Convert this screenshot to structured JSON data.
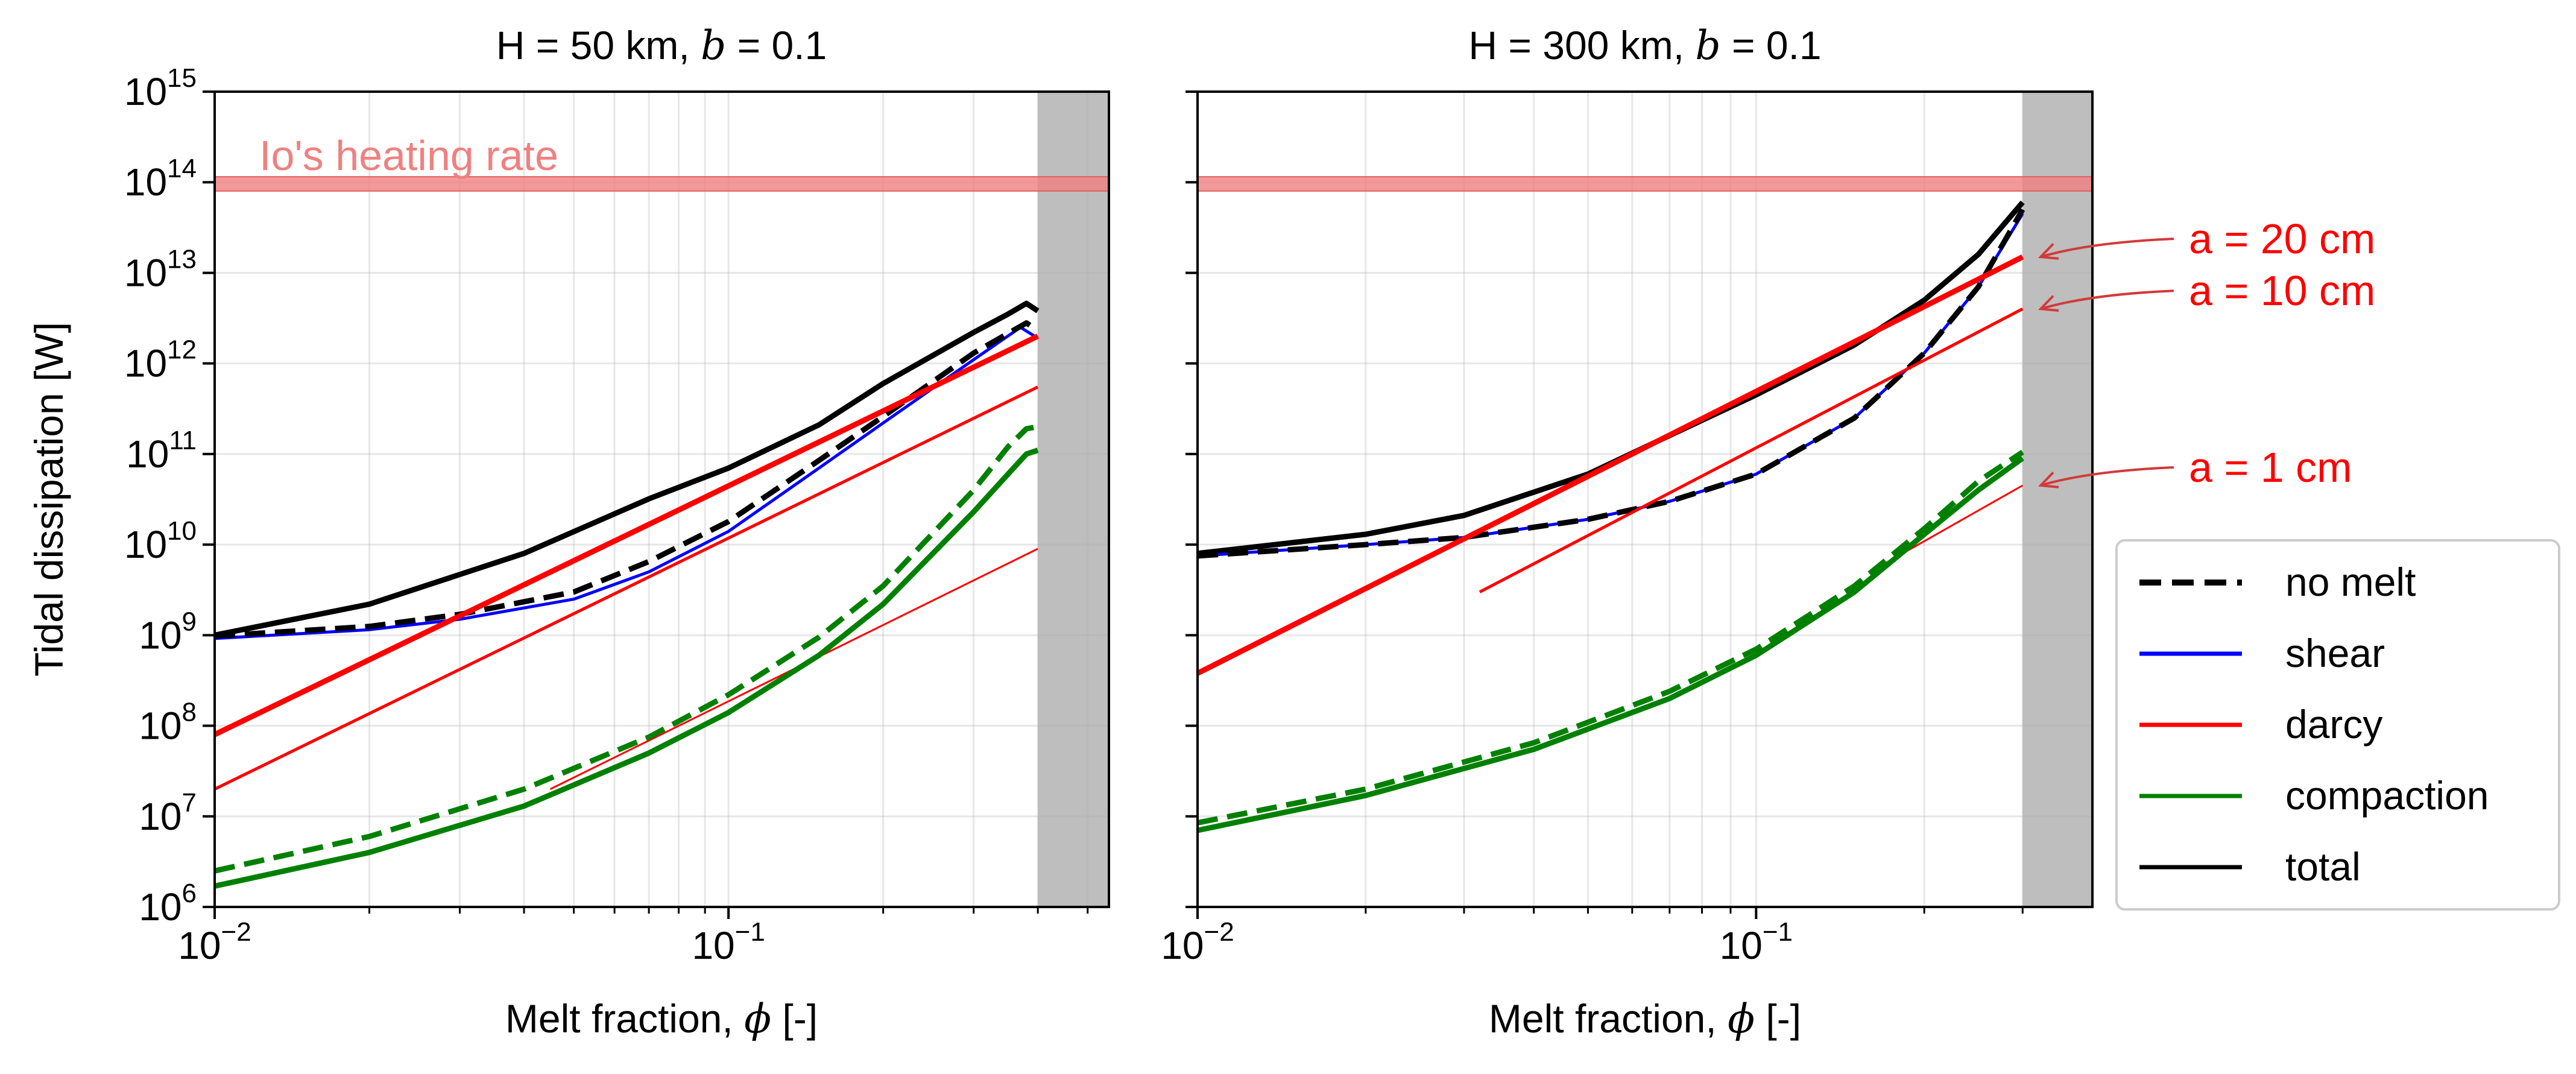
{
  "chart_data": [
    {
      "type": "line",
      "title": "H = 50 km, b = 0.1",
      "title_parts": {
        "prefix": "H = 50 km, ",
        "var": "b",
        "eq": " = 0.1"
      },
      "xlabel": "Melt fraction, ϕ [-]",
      "xlabel_parts": {
        "prefix": "Melt fraction, ",
        "var": "ϕ",
        "suffix": " [-]"
      },
      "ylabel": "Tidal dissipation [W]",
      "xscale": "log",
      "yscale": "log",
      "xlim": [
        0.01,
        0.55
      ],
      "ylim": [
        1000000.0,
        1000000000000000.0
      ],
      "x_tick_labels": [
        {
          "base": "10",
          "exp": "−2",
          "value": 0.01
        },
        {
          "base": "10",
          "exp": "−1",
          "value": 0.1
        }
      ],
      "y_tick_labels": [
        {
          "base": "10",
          "exp": "6",
          "value": 1000000.0
        },
        {
          "base": "10",
          "exp": "7",
          "value": 10000000.0
        },
        {
          "base": "10",
          "exp": "8",
          "value": 100000000.0
        },
        {
          "base": "10",
          "exp": "9",
          "value": 1000000000.0
        },
        {
          "base": "10",
          "exp": "10",
          "value": 10000000000.0
        },
        {
          "base": "10",
          "exp": "11",
          "value": 100000000000.0
        },
        {
          "base": "10",
          "exp": "12",
          "value": 1000000000000.0
        },
        {
          "base": "10",
          "exp": "13",
          "value": 10000000000000.0
        },
        {
          "base": "10",
          "exp": "14",
          "value": 100000000000000.0
        },
        {
          "base": "10",
          "exp": "15",
          "value": 1000000000000000.0
        }
      ],
      "heating_band": {
        "label": "Io's heating rate",
        "y_range": [
          80000000000000.0,
          115000000000000.0
        ],
        "color": "#f08080"
      },
      "shaded_region": {
        "x_range": [
          0.4,
          0.55
        ],
        "color": "#bebebe"
      },
      "series": [
        {
          "name": "total",
          "color": "#000000",
          "style": "solid",
          "width": "thick",
          "points": [
            [
              0.01,
              1000000000.0
            ],
            [
              0.02,
              2200000000.0
            ],
            [
              0.04,
              8000000000.0
            ],
            [
              0.07,
              32000000000.0
            ],
            [
              0.1,
              70000000000.0
            ],
            [
              0.15,
              210000000000.0
            ],
            [
              0.2,
              600000000000.0
            ],
            [
              0.3,
              2200000000000.0
            ],
            [
              0.35,
              3500000000000.0
            ],
            [
              0.38,
              4600000000000.0
            ],
            [
              0.4,
              3800000000000.0
            ]
          ]
        },
        {
          "name": "shear",
          "color": "#0000ff",
          "style": "solid",
          "width": "normal",
          "points": [
            [
              0.01,
              920000000.0
            ],
            [
              0.02,
              1150000000.0
            ],
            [
              0.03,
              1500000000.0
            ],
            [
              0.05,
              2500000000.0
            ],
            [
              0.07,
              5000000000.0
            ],
            [
              0.1,
              14000000000.0
            ],
            [
              0.15,
              70000000000.0
            ],
            [
              0.2,
              220000000000.0
            ],
            [
              0.3,
              1100000000000.0
            ],
            [
              0.37,
              2500000000000.0
            ],
            [
              0.4,
              1900000000000.0
            ]
          ]
        },
        {
          "name": "shear (no melt)",
          "color": "#000000",
          "style": "dashed",
          "width": "thick",
          "points": [
            [
              0.01,
              980000000.0
            ],
            [
              0.02,
              1250000000.0
            ],
            [
              0.03,
              1700000000.0
            ],
            [
              0.05,
              3000000000.0
            ],
            [
              0.07,
              6500000000.0
            ],
            [
              0.1,
              18000000000.0
            ],
            [
              0.15,
              85000000000.0
            ],
            [
              0.2,
              260000000000.0
            ],
            [
              0.3,
              1300000000000.0
            ],
            [
              0.38,
              2800000000000.0
            ],
            [
              0.4,
              2300000000000.0
            ]
          ]
        },
        {
          "name": "darcy a = 20 cm",
          "color": "#ff0000",
          "style": "solid",
          "width": "thick",
          "points": [
            [
              0.01,
              80000000.0
            ],
            [
              0.4,
              2000000000000.0
            ]
          ]
        },
        {
          "name": "darcy a = 10 cm",
          "color": "#ff0000",
          "style": "solid",
          "width": "normal",
          "points": [
            [
              0.01,
              20000000.0
            ],
            [
              0.4,
              550000000000.0
            ]
          ]
        },
        {
          "name": "darcy a = 1 cm",
          "color": "#ff0000",
          "style": "solid",
          "width": "thin",
          "points": [
            [
              0.045,
              20000000.0
            ],
            [
              0.4,
              9000000000.0
            ]
          ]
        },
        {
          "name": "compaction",
          "color": "#008000",
          "style": "solid",
          "width": "thick",
          "points": [
            [
              0.01,
              1700000.0
            ],
            [
              0.02,
              4000000.0
            ],
            [
              0.04,
              13000000.0
            ],
            [
              0.07,
              50000000.0
            ],
            [
              0.1,
              140000000.0
            ],
            [
              0.15,
              600000000.0
            ],
            [
              0.2,
              2200000000.0
            ],
            [
              0.3,
              23000000000.0
            ],
            [
              0.35,
              60000000000.0
            ],
            [
              0.38,
              100000000000.0
            ],
            [
              0.4,
              110000000000.0
            ]
          ]
        },
        {
          "name": "compaction (no melt)",
          "color": "#008000",
          "style": "dashed",
          "width": "thick",
          "points": [
            [
              0.01,
              2500000.0
            ],
            [
              0.02,
              6000000.0
            ],
            [
              0.04,
              20000000.0
            ],
            [
              0.07,
              75000000.0
            ],
            [
              0.1,
              220000000.0
            ],
            [
              0.15,
              950000000.0
            ],
            [
              0.2,
              3500000000.0
            ],
            [
              0.3,
              40000000000.0
            ],
            [
              0.35,
              120000000000.0
            ],
            [
              0.38,
              190000000000.0
            ],
            [
              0.4,
              200000000000.0
            ]
          ]
        }
      ]
    },
    {
      "type": "line",
      "title": "H = 300 km, b = 0.1",
      "title_parts": {
        "prefix": "H = 300 km, ",
        "var": "b",
        "eq": " = 0.1"
      },
      "xlabel": "Melt fraction, ϕ [-]",
      "xlabel_parts": {
        "prefix": "Melt fraction, ",
        "var": "ϕ",
        "suffix": " [-]"
      },
      "xscale": "log",
      "yscale": "log",
      "xlim": [
        0.01,
        0.4
      ],
      "ylim": [
        1000000.0,
        1000000000000000.0
      ],
      "x_tick_labels": [
        {
          "base": "10",
          "exp": "−2",
          "value": 0.01
        },
        {
          "base": "10",
          "exp": "−1",
          "value": 0.1
        }
      ],
      "heating_band": {
        "y_range": [
          80000000000000.0,
          115000000000000.0
        ],
        "color": "#f08080"
      },
      "shaded_region": {
        "x_range": [
          0.3,
          0.4
        ],
        "color": "#bebebe"
      },
      "series": [
        {
          "name": "total",
          "color": "#000000",
          "style": "solid",
          "width": "thick",
          "points": [
            [
              0.01,
              8000000000.0
            ],
            [
              0.02,
              13000000000.0
            ],
            [
              0.03,
              21000000000.0
            ],
            [
              0.05,
              60000000000.0
            ],
            [
              0.07,
              160000000000.0
            ],
            [
              0.1,
              450000000000.0
            ],
            [
              0.15,
              1600000000000.0
            ],
            [
              0.2,
              5000000000000.0
            ],
            [
              0.25,
              16000000000000.0
            ],
            [
              0.3,
              60000000000000.0
            ]
          ]
        },
        {
          "name": "shear",
          "color": "#0000ff",
          "style": "solid",
          "width": "normal",
          "points": [
            [
              0.01,
              7500000000.0
            ],
            [
              0.02,
              10000000000.0
            ],
            [
              0.03,
              12000000000.0
            ],
            [
              0.05,
              19000000000.0
            ],
            [
              0.07,
              30000000000.0
            ],
            [
              0.1,
              60000000000.0
            ],
            [
              0.15,
              250000000000.0
            ],
            [
              0.2,
              1300000000000.0
            ],
            [
              0.25,
              7000000000000.0
            ],
            [
              0.3,
              45000000000000.0
            ]
          ]
        },
        {
          "name": "shear (no melt)",
          "color": "#000000",
          "style": "dashed",
          "width": "thick",
          "points": [
            [
              0.01,
              7500000000.0
            ],
            [
              0.02,
              10000000000.0
            ],
            [
              0.03,
              12000000000.0
            ],
            [
              0.05,
              19000000000.0
            ],
            [
              0.07,
              30000000000.0
            ],
            [
              0.1,
              60000000000.0
            ],
            [
              0.15,
              250000000000.0
            ],
            [
              0.2,
              1300000000000.0
            ],
            [
              0.25,
              7000000000000.0
            ],
            [
              0.3,
              50000000000000.0
            ]
          ]
        },
        {
          "name": "darcy a = 20 cm",
          "color": "#ff0000",
          "style": "solid",
          "width": "thick",
          "points": [
            [
              0.01,
              380000000.0
            ],
            [
              0.3,
              15000000000000.0
            ]
          ]
        },
        {
          "name": "darcy a = 10 cm",
          "color": "#ff0000",
          "style": "solid",
          "width": "normal",
          "points": [
            [
              0.032,
              3000000000.0
            ],
            [
              0.3,
              4000000000000.0
            ]
          ]
        },
        {
          "name": "darcy a = 1 cm",
          "color": "#ff0000",
          "style": "solid",
          "width": "thin",
          "points": [
            [
              0.16,
              5000000000.0
            ],
            [
              0.3,
              45000000000.0
            ]
          ]
        },
        {
          "name": "compaction",
          "color": "#008000",
          "style": "solid",
          "width": "thick",
          "points": [
            [
              0.01,
              7000000.0
            ],
            [
              0.02,
              17000000.0
            ],
            [
              0.04,
              55000000.0
            ],
            [
              0.07,
              200000000.0
            ],
            [
              0.1,
              600000000.0
            ],
            [
              0.15,
              3000000000.0
            ],
            [
              0.2,
              13000000000.0
            ],
            [
              0.25,
              40000000000.0
            ],
            [
              0.3,
              90000000000.0
            ]
          ]
        },
        {
          "name": "compaction (no melt)",
          "color": "#008000",
          "style": "dashed",
          "width": "thick",
          "points": [
            [
              0.01,
              8500000.0
            ],
            [
              0.02,
              20000000.0
            ],
            [
              0.04,
              65000000.0
            ],
            [
              0.07,
              240000000.0
            ],
            [
              0.1,
              700000000.0
            ],
            [
              0.15,
              3500000000.0
            ],
            [
              0.2,
              15000000000.0
            ],
            [
              0.25,
              50000000000.0
            ],
            [
              0.3,
              105000000000.0
            ]
          ]
        }
      ],
      "annotations": [
        {
          "text": "a = 20 cm",
          "target": [
            0.3,
            15000000000000.0
          ],
          "color": "#ff0000"
        },
        {
          "text": "a = 10 cm",
          "target": [
            0.3,
            4000000000000.0
          ],
          "color": "#ff0000"
        },
        {
          "text": "a = 1 cm",
          "target": [
            0.3,
            45000000000.0
          ],
          "color": "#ff0000"
        }
      ]
    }
  ],
  "legend": {
    "placement": "right",
    "entries": [
      {
        "label": "no melt",
        "color": "#000000",
        "style": "dashed"
      },
      {
        "label": "shear",
        "color": "#0000ff",
        "style": "solid"
      },
      {
        "label": "darcy",
        "color": "#ff0000",
        "style": "solid"
      },
      {
        "label": "compaction",
        "color": "#008000",
        "style": "solid"
      },
      {
        "label": "total",
        "color": "#000000",
        "style": "solid"
      }
    ]
  }
}
